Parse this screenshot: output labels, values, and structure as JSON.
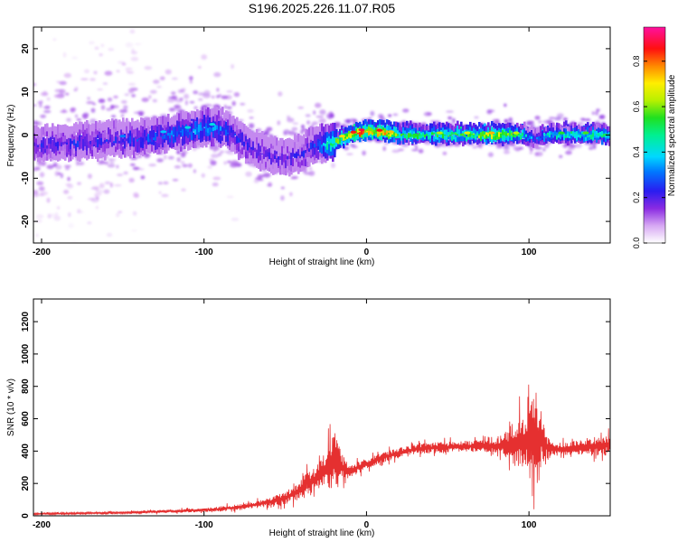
{
  "title": "S196.2025.226.11.07.R05",
  "chart_data": [
    {
      "type": "heatmap",
      "xlabel": "Height of straight line (km)",
      "ylabel": "Frequency (Hz)",
      "xlim": [
        -205,
        150
      ],
      "ylim": [
        -25,
        25
      ],
      "xticks": [
        -200,
        -100,
        0,
        100
      ],
      "yticks": [
        -20,
        -10,
        0,
        10,
        20
      ],
      "colorbar": {
        "label": "Normalized spectral amplitude",
        "range": [
          0,
          0.95
        ],
        "ticks": [
          "0.0",
          "0.2",
          "0.4",
          "0.6",
          "0.8"
        ],
        "tick_values": [
          0,
          0.2,
          0.4,
          0.6,
          0.8
        ],
        "colormap": "white-purple-blue-cyan-green-yellow-red-magenta"
      },
      "ridge": {
        "x": [
          -205,
          -180,
          -160,
          -140,
          -120,
          -100,
          -90,
          -80,
          -70,
          -60,
          -50,
          -40,
          -35,
          -30,
          -20,
          -10,
          -5,
          0,
          10,
          20,
          40,
          60,
          80,
          95,
          100,
          105,
          110,
          130,
          150
        ],
        "frequency": [
          -1.5,
          -1,
          -0.5,
          0,
          1,
          2.5,
          2.5,
          0,
          -2.5,
          -4,
          -4.5,
          -3.5,
          -2,
          -1.5,
          -1,
          0.5,
          1,
          1.5,
          1,
          0.5,
          0.5,
          0.5,
          0.5,
          0.5,
          0,
          -0.5,
          0.5,
          0.5,
          0.5
        ],
        "amplitude": [
          0.2,
          0.22,
          0.22,
          0.25,
          0.3,
          0.35,
          0.3,
          0.22,
          0.2,
          0.18,
          0.18,
          0.2,
          0.22,
          0.3,
          0.55,
          0.75,
          0.85,
          0.8,
          0.8,
          0.55,
          0.55,
          0.6,
          0.7,
          0.55,
          0.35,
          0.3,
          0.45,
          0.5,
          0.5
        ]
      }
    },
    {
      "type": "line",
      "xlabel": "Height of straight line (km)",
      "ylabel": "SNR (10 * v/v)",
      "xlim": [
        -205,
        150
      ],
      "ylim": [
        0,
        1340
      ],
      "xticks": [
        -200,
        -100,
        0,
        100
      ],
      "yticks": [
        0,
        200,
        400,
        600,
        800,
        1000,
        1200
      ],
      "color": "#e53030",
      "series_envelope": {
        "x": [
          -205,
          -180,
          -160,
          -140,
          -120,
          -100,
          -90,
          -80,
          -70,
          -60,
          -50,
          -45,
          -40,
          -35,
          -30,
          -25,
          -20,
          -17,
          -15,
          -12,
          -10,
          -5,
          0,
          10,
          20,
          30,
          40,
          50,
          60,
          70,
          80,
          85,
          90,
          95,
          98,
          100,
          103,
          105,
          108,
          110,
          115,
          120,
          130,
          140,
          150
        ],
        "mean": [
          12,
          15,
          18,
          22,
          28,
          35,
          42,
          52,
          65,
          85,
          110,
          135,
          165,
          200,
          240,
          290,
          340,
          330,
          300,
          280,
          270,
          300,
          320,
          360,
          390,
          410,
          420,
          425,
          430,
          430,
          430,
          435,
          440,
          450,
          460,
          450,
          470,
          480,
          470,
          430,
          410,
          410,
          420,
          430,
          440
        ],
        "amplitude": [
          10,
          10,
          12,
          15,
          18,
          22,
          30,
          35,
          40,
          50,
          70,
          90,
          120,
          150,
          160,
          200,
          340,
          220,
          170,
          100,
          80,
          70,
          60,
          60,
          55,
          55,
          60,
          60,
          60,
          70,
          80,
          150,
          250,
          300,
          330,
          420,
          880,
          420,
          300,
          150,
          80,
          70,
          90,
          110,
          120
        ]
      }
    }
  ]
}
